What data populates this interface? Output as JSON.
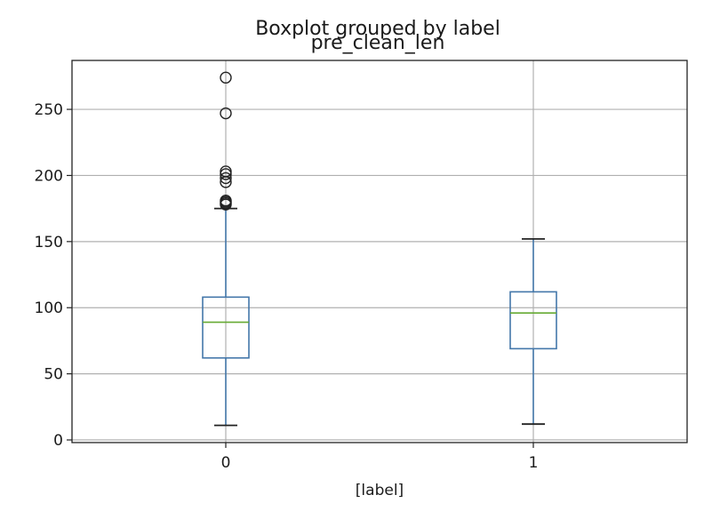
{
  "chart_data": {
    "type": "boxplot",
    "suptitle": "Boxplot grouped by label",
    "title": "pre_clean_len",
    "xlabel": "[label]",
    "ylabel": "",
    "categories": [
      "0",
      "1"
    ],
    "ylim": [
      -2,
      287
    ],
    "yticks": [
      0,
      50,
      100,
      150,
      200,
      250
    ],
    "grid": true,
    "boxes": [
      {
        "category": "0",
        "whislo": 11,
        "q1": 62,
        "med": 89,
        "q3": 108,
        "whishi": 175,
        "fliers": [
          178,
          179,
          180,
          181,
          195,
          198,
          201,
          203,
          247,
          274
        ]
      },
      {
        "category": "1",
        "whislo": 12,
        "q1": 69,
        "med": 96,
        "q3": 112,
        "whishi": 152,
        "fliers": []
      }
    ],
    "colors": {
      "box": "#4477aa",
      "median": "#66aa33",
      "flier": "#222222",
      "grid": "#b0b0b0"
    }
  }
}
